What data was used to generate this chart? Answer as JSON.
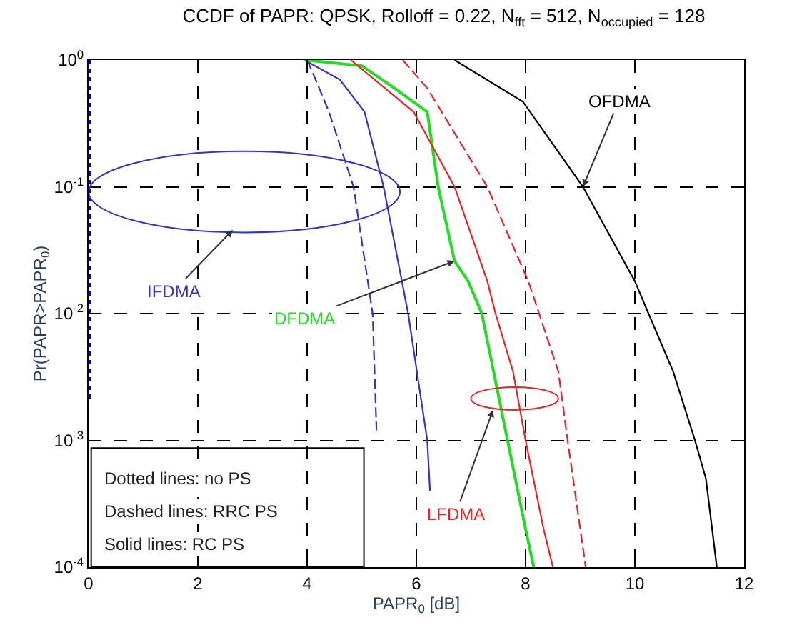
{
  "chart_data": {
    "type": "line",
    "title": "CCDF of PAPR: QPSK, Rolloff = 0.22, N$_{fft}$ = 512, N$_{occupied}$ = 128",
    "xlabel": "PAPR$_{0}$ [dB]",
    "ylabel": "Pr(PAPR>PAPR$_{0}$)",
    "log": "y",
    "grid": true,
    "marker": "none",
    "xlim": [
      0,
      12
    ],
    "xticks": [
      0,
      2,
      4,
      6,
      8,
      10,
      12
    ],
    "ylim": [
      0.0001,
      1
    ],
    "yticks": [
      {
        "value": 0.0001,
        "label": "10$^{-4}$"
      },
      {
        "value": 0.001,
        "label": "10$^{-3}$"
      },
      {
        "value": 0.01,
        "label": "10$^{-2}$"
      },
      {
        "value": 0.1,
        "label": "10$^{-1}$"
      },
      {
        "value": 1,
        "label": "10$^{0}$"
      }
    ],
    "series": [
      {
        "color": "#0000ee",
        "line_style": "dotted",
        "x": [
          0,
          0,
          0,
          0
        ],
        "values": [
          1,
          0.1,
          0.01,
          0.0021
        ]
      },
      {
        "color": "#3333cc",
        "line_style": "solid",
        "x": [
          3.95,
          4.6,
          5.05,
          5.4,
          5.85,
          6.2,
          6.25
        ],
        "values": [
          1,
          0.7,
          0.39,
          0.1,
          0.01,
          0.001,
          0.0004
        ]
      },
      {
        "color": "#3333cc",
        "line_style": "dashed",
        "x": [
          4.0,
          4.1,
          4.4,
          4.85,
          5.2,
          5.27
        ],
        "values": [
          1,
          0.8,
          0.39,
          0.1,
          0.01,
          0.0012
        ]
      },
      {
        "color": "#22dd22",
        "line_style": "solid",
        "x": [
          3.95,
          5.0,
          5.6,
          6.2,
          6.4,
          6.7,
          6.95,
          7.2,
          7.67,
          8.0,
          8.15
        ],
        "values": [
          1,
          0.9,
          0.6,
          0.39,
          0.1,
          0.026,
          0.018,
          0.01,
          0.001,
          0.0002,
          0.0001
        ]
      },
      {
        "color": "#ee2222",
        "line_style": "solid",
        "x": [
          4.8,
          5.95,
          6.7,
          7.3,
          7.45,
          7.77,
          8.0,
          8.33,
          8.5
        ],
        "values": [
          1,
          0.39,
          0.1,
          0.018,
          0.01,
          0.0035,
          0.001,
          0.0002,
          0.0001
        ]
      },
      {
        "color": "#ee2222",
        "line_style": "dashed",
        "x": [
          5.75,
          6.2,
          7.3,
          8.05,
          8.6,
          8.77,
          9.1
        ],
        "values": [
          1,
          0.6,
          0.1,
          0.018,
          0.0035,
          0.001,
          0.0001
        ]
      },
      {
        "color": "#000000",
        "line_style": "solid",
        "x": [
          6.7,
          7.95,
          9.05,
          10.0,
          10.25,
          10.7,
          11.1,
          11.3,
          11.5
        ],
        "values": [
          1,
          0.47,
          0.1,
          0.018,
          0.01,
          0.0035,
          0.001,
          0.0005,
          0.0001
        ]
      }
    ],
    "annotations": [
      {
        "text": "OFDMA",
        "x": 9.05,
        "y": 0.1
      },
      "IFDMA",
      {
        "text": "DFDMA",
        "x": 6.7,
        "y": 0.026
      },
      "LFDMA",
      "Dotted lines: no PS",
      "Dashed lines: RRC PS",
      "Solid lines: RC PS"
    ]
  }
}
